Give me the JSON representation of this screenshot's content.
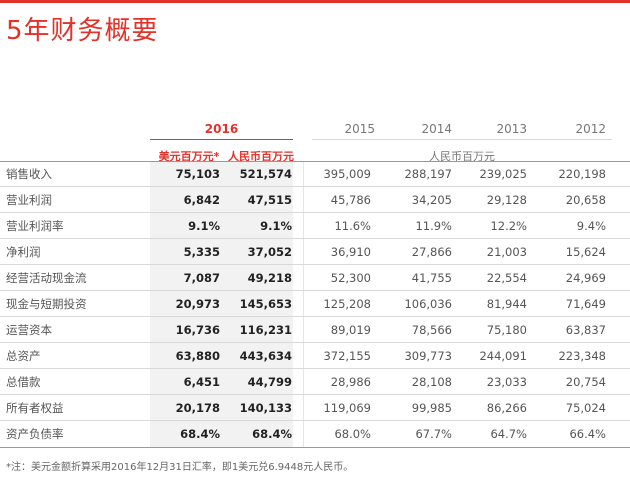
{
  "title": "5年财务概要",
  "header": {
    "year_2016": "2016",
    "years": [
      "2015",
      "2014",
      "2013",
      "2012"
    ],
    "unit_usd": "美元百万元*",
    "unit_rmb": "人民币百万元",
    "unit_other": "人民币百万元"
  },
  "rows": [
    {
      "label": "销售收入",
      "usd": "75,103",
      "rmb": "521,574",
      "y2015": "395,009",
      "y2014": "288,197",
      "y2013": "239,025",
      "y2012": "220,198"
    },
    {
      "label": "营业利润",
      "usd": "6,842",
      "rmb": "47,515",
      "y2015": "45,786",
      "y2014": "34,205",
      "y2013": "29,128",
      "y2012": "20,658"
    },
    {
      "label": "营业利润率",
      "usd": "9.1%",
      "rmb": "9.1%",
      "y2015": "11.6%",
      "y2014": "11.9%",
      "y2013": "12.2%",
      "y2012": "9.4%"
    },
    {
      "label": "净利润",
      "usd": "5,335",
      "rmb": "37,052",
      "y2015": "36,910",
      "y2014": "27,866",
      "y2013": "21,003",
      "y2012": "15,624"
    },
    {
      "label": "经营活动现金流",
      "usd": "7,087",
      "rmb": "49,218",
      "y2015": "52,300",
      "y2014": "41,755",
      "y2013": "22,554",
      "y2012": "24,969"
    },
    {
      "label": "现金与短期投资",
      "usd": "20,973",
      "rmb": "145,653",
      "y2015": "125,208",
      "y2014": "106,036",
      "y2013": "81,944",
      "y2012": "71,649"
    },
    {
      "label": "运营资本",
      "usd": "16,736",
      "rmb": "116,231",
      "y2015": "89,019",
      "y2014": "78,566",
      "y2013": "75,180",
      "y2012": "63,837"
    },
    {
      "label": "总资产",
      "usd": "63,880",
      "rmb": "443,634",
      "y2015": "372,155",
      "y2014": "309,773",
      "y2013": "244,091",
      "y2012": "223,348"
    },
    {
      "label": "总借款",
      "usd": "6,451",
      "rmb": "44,799",
      "y2015": "28,986",
      "y2014": "28,108",
      "y2013": "23,033",
      "y2012": "20,754"
    },
    {
      "label": "所有者权益",
      "usd": "20,178",
      "rmb": "140,133",
      "y2015": "119,069",
      "y2014": "99,985",
      "y2013": "86,266",
      "y2012": "75,024"
    },
    {
      "label": "资产负债率",
      "usd": "68.4%",
      "rmb": "68.4%",
      "y2015": "68.0%",
      "y2014": "67.7%",
      "y2013": "64.7%",
      "y2012": "66.4%"
    }
  ],
  "footnote": "*注：美元金额折算采用2016年12月31日汇率，即1美元兑6.9448元人民币。",
  "colors": {
    "accent": "#e2322a",
    "shade": "#f2f2f2"
  }
}
